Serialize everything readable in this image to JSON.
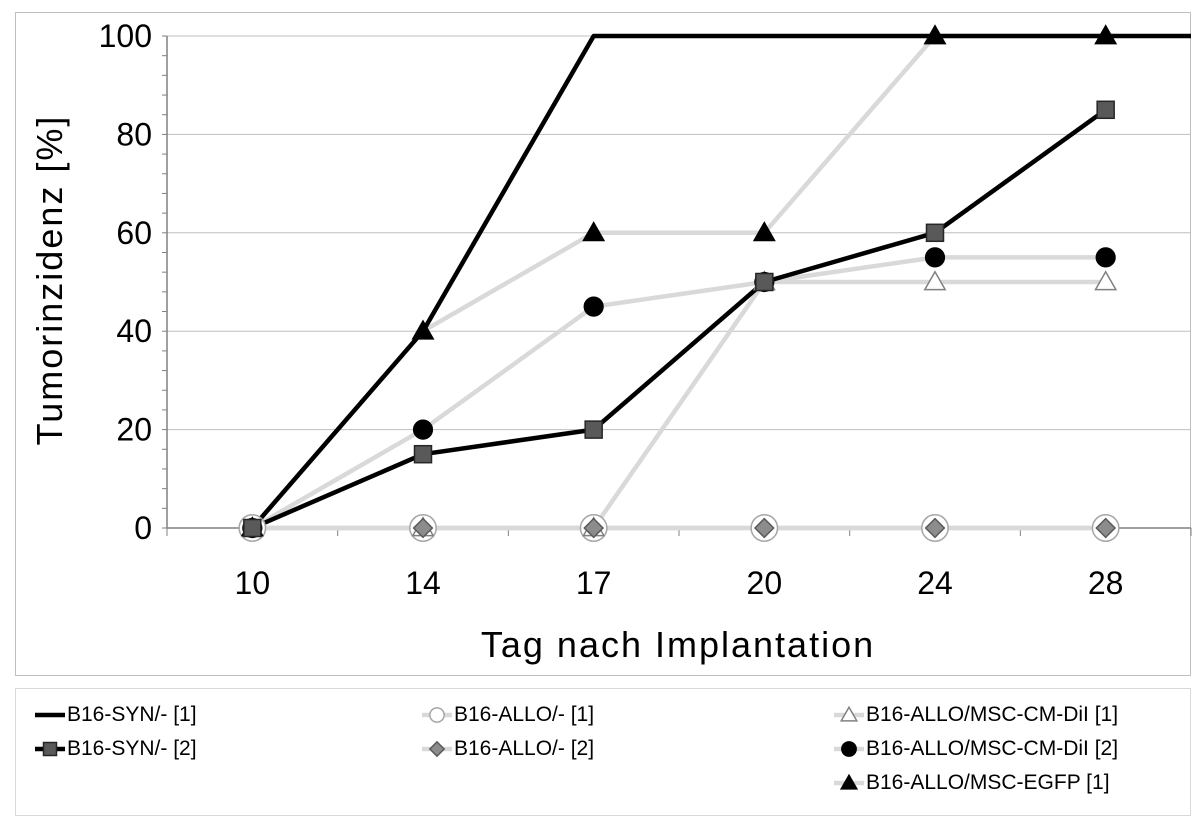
{
  "chart_data": {
    "type": "line",
    "title": "",
    "xlabel": "Tag nach Implantation",
    "ylabel": "Tumorinzidenz [%]",
    "categories": [
      "10",
      "14",
      "17",
      "20",
      "24",
      "28"
    ],
    "y_ticks": [
      "0",
      "20",
      "40",
      "60",
      "80",
      "100"
    ],
    "ylim": [
      0,
      100
    ],
    "grid": "horizontal",
    "legend_position": "bottom",
    "series": [
      {
        "name": "B16-SYN/- [1]",
        "values": [
          0,
          40,
          100,
          100,
          100,
          null
        ],
        "color": "#000000",
        "marker": "none",
        "marker_fill": "#000000",
        "marker_stroke": "#000000"
      },
      {
        "name": "B16-ALLO/- [1]",
        "values": [
          0,
          0,
          0,
          0,
          0,
          0
        ],
        "color": "#d9d9d9",
        "marker": "circle-open",
        "marker_fill": "#ffffff",
        "marker_stroke": "#a6a6a6"
      },
      {
        "name": "B16-ALLO/MSC-CM-DiI [1]",
        "values": [
          0,
          0,
          0,
          50,
          50,
          50
        ],
        "color": "#d9d9d9",
        "marker": "triangle-open",
        "marker_fill": "#ffffff",
        "marker_stroke": "#808080"
      },
      {
        "name": "B16-SYN/- [2]",
        "values": [
          0,
          15,
          20,
          50,
          60,
          85
        ],
        "color": "#000000",
        "marker": "square",
        "marker_fill": "#595959",
        "marker_stroke": "#262626"
      },
      {
        "name": "B16-ALLO/- [2]",
        "values": [
          0,
          0,
          0,
          0,
          0,
          0
        ],
        "color": "#d9d9d9",
        "marker": "diamond",
        "marker_fill": "#8c8c8c",
        "marker_stroke": "#595959"
      },
      {
        "name": "B16-ALLO/MSC-CM-DiI [2]",
        "values": [
          0,
          20,
          45,
          50,
          55,
          55
        ],
        "color": "#d9d9d9",
        "marker": "circle",
        "marker_fill": "#000000",
        "marker_stroke": "#000000"
      },
      {
        "name": "B16-ALLO/MSC-EGFP [1]",
        "values": [
          0,
          40,
          60,
          60,
          100,
          100
        ],
        "color": "#d9d9d9",
        "marker": "triangle",
        "marker_fill": "#000000",
        "marker_stroke": "#000000"
      }
    ]
  }
}
